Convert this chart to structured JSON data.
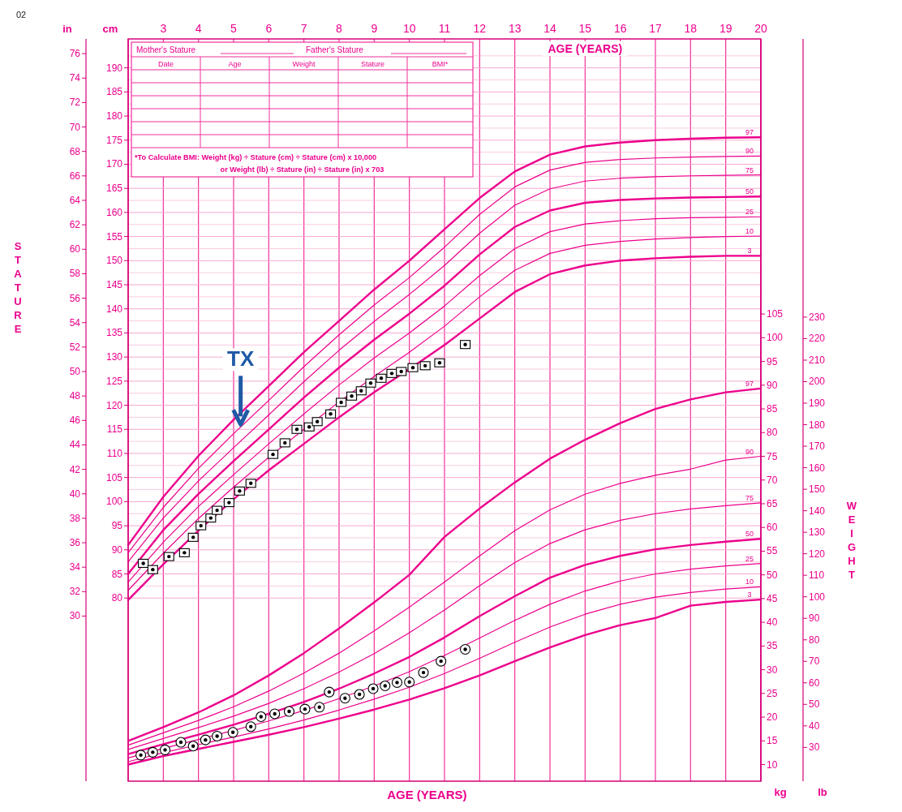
{
  "chart_data": [
    {
      "type": "line",
      "xlabel": "AGE (YEARS)",
      "y2label": "STATURE",
      "x": [
        2,
        3,
        4,
        5,
        6,
        7,
        8,
        9,
        10,
        11,
        12,
        13,
        14,
        15,
        16,
        17,
        18,
        19,
        20
      ],
      "xlim": [
        2,
        20
      ],
      "xticks": [
        3,
        4,
        5,
        6,
        7,
        8,
        9,
        10,
        11,
        12,
        13,
        14,
        15,
        16,
        17,
        18,
        19,
        20
      ],
      "ylim": [
        42,
        196
      ],
      "yticks": [
        80,
        85,
        90,
        95,
        100,
        105,
        110,
        115,
        120,
        125,
        130,
        135,
        140,
        145,
        150,
        155,
        160,
        165,
        170,
        175,
        180,
        185,
        190
      ],
      "y2lim": [
        16.5,
        77.2
      ],
      "y2ticks": [
        30,
        32,
        34,
        36,
        38,
        40,
        42,
        44,
        46,
        48,
        50,
        52,
        54,
        56,
        58,
        60,
        62,
        64,
        66,
        68,
        70,
        72,
        74,
        76
      ],
      "grid": true,
      "series": [
        {
          "name": "3",
          "color": "#ec008c",
          "values": [
            79.6,
            87.0,
            94.0,
            100.5,
            106.5,
            112.0,
            117.5,
            122.7,
            127.5,
            132.5,
            138.0,
            143.5,
            147.2,
            149.0,
            150.0,
            150.5,
            150.8,
            151.0,
            151.0
          ]
        },
        {
          "name": "10",
          "color": "#ec008c",
          "values": [
            81.6,
            89.3,
            96.5,
            103.0,
            109.2,
            115.0,
            120.7,
            126.0,
            131.0,
            136.4,
            142.5,
            148.0,
            151.5,
            153.2,
            154.0,
            154.5,
            154.8,
            155.0,
            155.1
          ]
        },
        {
          "name": "25",
          "color": "#ec008c",
          "values": [
            83.3,
            91.6,
            99.0,
            105.6,
            112.0,
            118.2,
            124.2,
            129.8,
            135.0,
            140.6,
            146.9,
            152.5,
            156.0,
            157.6,
            158.3,
            158.7,
            158.9,
            159.0,
            159.1
          ]
        },
        {
          "name": "50",
          "color": "#ec008c",
          "values": [
            85.0,
            94.1,
            101.6,
            108.4,
            115.0,
            121.6,
            127.8,
            133.6,
            139.0,
            144.8,
            151.3,
            157.0,
            160.4,
            162.0,
            162.6,
            162.9,
            163.1,
            163.2,
            163.3
          ]
        },
        {
          "name": "75",
          "color": "#ec008c",
          "values": [
            87.5,
            96.6,
            104.3,
            111.2,
            118.0,
            124.9,
            131.4,
            137.4,
            143.0,
            149.0,
            155.7,
            161.5,
            164.9,
            166.5,
            167.1,
            167.4,
            167.6,
            167.7,
            167.8
          ]
        },
        {
          "name": "90",
          "color": "#ec008c",
          "values": [
            89.4,
            98.8,
            106.9,
            114.1,
            121.0,
            128.0,
            134.6,
            140.8,
            146.5,
            152.8,
            159.6,
            165.3,
            168.8,
            170.4,
            171.0,
            171.3,
            171.5,
            171.6,
            171.7
          ]
        },
        {
          "name": "97",
          "color": "#ec008c",
          "values": [
            91.0,
            101.0,
            109.5,
            117.0,
            124.0,
            131.0,
            137.5,
            144.0,
            150.0,
            156.5,
            163.0,
            168.5,
            172.0,
            173.7,
            174.5,
            175.0,
            175.3,
            175.5,
            175.6
          ]
        },
        {
          "type": "scatter",
          "marker": "square",
          "color": "#000000",
          "x": [
            2.43,
            2.7,
            3.16,
            3.6,
            3.85,
            4.07,
            4.35,
            4.53,
            4.87,
            5.17,
            5.49,
            6.12,
            6.46,
            6.8,
            7.15,
            7.38,
            7.76,
            8.06,
            8.36,
            8.63,
            8.9,
            9.2,
            9.5,
            9.77,
            10.1,
            10.45,
            10.86,
            11.59
          ],
          "values": [
            87.2,
            85.9,
            88.6,
            89.4,
            92.6,
            95.0,
            96.6,
            98.2,
            99.8,
            102.2,
            103.8,
            109.8,
            112.2,
            115.0,
            115.5,
            116.6,
            118.2,
            120.6,
            121.9,
            123.0,
            124.6,
            125.6,
            126.6,
            127.0,
            127.8,
            128.2,
            128.8,
            132.6
          ]
        }
      ],
      "annotations": [
        "02",
        "Mother's Stature",
        "Father's Stature",
        "Date",
        "Age",
        "Weight",
        "Stature",
        "BMI*",
        "*To Calculate BMI: Weight (kg) ÷ Stature (cm) ÷ Stature (cm) x 10,000",
        "or Weight (lb) ÷ Stature (in) ÷ Stature (in) x 703",
        "in",
        "cm",
        {
          "text": "TX",
          "x": 5.2,
          "y": 116
        }
      ]
    },
    {
      "type": "line",
      "xlabel": "AGE (YEARS)",
      "y2label": "WEIGHT",
      "x": [
        2,
        3,
        4,
        5,
        6,
        7,
        8,
        9,
        10,
        11,
        12,
        13,
        14,
        15,
        16,
        17,
        18,
        19,
        20
      ],
      "xlim": [
        2,
        20
      ],
      "tick_labels": "y",
      "ylim": [
        6.5,
        163
      ],
      "yticks": [
        10,
        15,
        20,
        25,
        30,
        35,
        40,
        45,
        50,
        55,
        60,
        65,
        70,
        75,
        80,
        85,
        90,
        95,
        100,
        105
      ],
      "y2lim": [
        14.3,
        359.3
      ],
      "y2ticks": [
        30,
        40,
        50,
        60,
        70,
        80,
        90,
        100,
        110,
        120,
        130,
        140,
        150,
        160,
        170,
        180,
        190,
        200,
        210,
        220,
        230
      ],
      "series": [
        {
          "name": "3",
          "color": "#ec008c",
          "values": [
            10.0,
            11.8,
            13.3,
            14.8,
            16.3,
            17.9,
            19.7,
            21.6,
            23.7,
            26.1,
            28.8,
            31.8,
            34.7,
            37.3,
            39.4,
            40.9,
            43.5,
            44.3,
            44.8
          ]
        },
        {
          "name": "10",
          "color": "#ec008c",
          "values": [
            10.6,
            12.5,
            14.2,
            15.8,
            17.5,
            19.4,
            21.5,
            23.8,
            26.3,
            29.2,
            32.4,
            35.8,
            39.0,
            41.7,
            43.8,
            45.3,
            46.3,
            47.0,
            47.5
          ]
        },
        {
          "name": "25",
          "color": "#ec008c",
          "values": [
            11.4,
            13.4,
            15.3,
            17.2,
            19.2,
            21.4,
            23.9,
            26.6,
            29.6,
            33.0,
            36.7,
            40.4,
            43.8,
            46.6,
            48.7,
            50.2,
            51.2,
            51.9,
            52.4
          ]
        },
        {
          "name": "50",
          "color": "#ec008c",
          "values": [
            12.2,
            14.3,
            16.3,
            18.4,
            20.7,
            23.2,
            26.0,
            29.2,
            32.7,
            36.8,
            41.3,
            45.5,
            49.4,
            52.1,
            54.0,
            55.4,
            56.3,
            57.0,
            57.6
          ]
        },
        {
          "name": "75",
          "color": "#ec008c",
          "values": [
            13.2,
            15.5,
            17.8,
            20.2,
            22.9,
            26.0,
            29.5,
            33.4,
            37.8,
            42.6,
            47.7,
            52.6,
            56.6,
            59.5,
            61.5,
            62.9,
            63.9,
            64.6,
            65.2
          ]
        },
        {
          "name": "90",
          "color": "#ec008c",
          "values": [
            14.1,
            16.7,
            19.3,
            22.2,
            25.5,
            29.3,
            33.5,
            38.2,
            43.2,
            48.5,
            54.0,
            59.3,
            63.7,
            67.0,
            69.3,
            71.0,
            72.3,
            74.2,
            75.0
          ]
        },
        {
          "name": "97",
          "color": "#ec008c",
          "values": [
            15.0,
            17.9,
            21.0,
            24.6,
            28.8,
            33.5,
            38.7,
            44.2,
            50.0,
            58.0,
            64.0,
            69.5,
            74.5,
            78.5,
            82.0,
            85.0,
            87.0,
            88.5,
            89.3
          ]
        },
        {
          "type": "scatter",
          "marker": "circle",
          "color": "#000000",
          "x": [
            2.36,
            2.7,
            3.05,
            3.5,
            3.85,
            4.2,
            4.53,
            4.98,
            5.49,
            5.78,
            6.17,
            6.58,
            7.03,
            7.44,
            7.72,
            8.17,
            8.58,
            8.97,
            9.31,
            9.65,
            10.0,
            10.4,
            10.9,
            11.59
          ],
          "values": [
            12.0,
            12.6,
            13.1,
            14.7,
            13.9,
            15.2,
            16.0,
            16.8,
            18.0,
            20.1,
            20.7,
            21.2,
            21.7,
            22.1,
            25.3,
            24.0,
            24.8,
            26.0,
            26.6,
            27.3,
            27.4,
            29.4,
            31.8,
            34.3
          ]
        }
      ],
      "annotations": [
        "kg",
        "lb"
      ]
    }
  ]
}
